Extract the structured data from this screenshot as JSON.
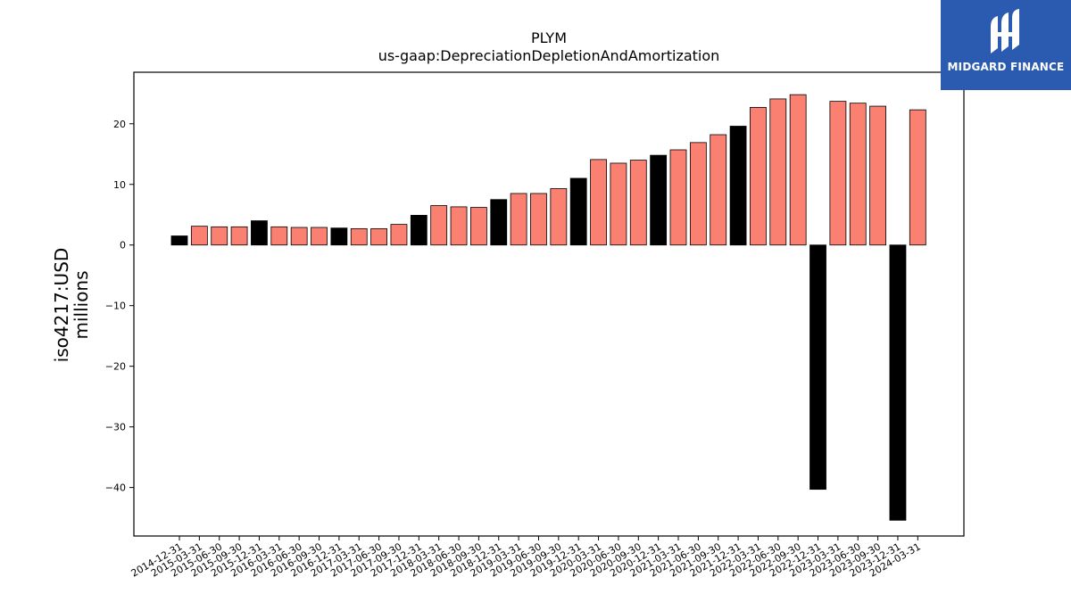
{
  "logo": {
    "text": "MIDGARD FINANCE",
    "icon": "midgard-logo-icon"
  },
  "chart_data": {
    "type": "bar",
    "title": "PLYM",
    "subtitle": "us-gaap:DepreciationDepletionAndAmortization",
    "ylabel_line1": "iso4217:USD",
    "ylabel_line2": "millions",
    "xlabel": "",
    "ylim": [
      -48,
      28.5
    ],
    "yticks": [
      20,
      10,
      0,
      -10,
      -20,
      -30,
      -40
    ],
    "ytick_labels": [
      "20",
      "10",
      "0",
      "−10",
      "−20",
      "−30",
      "−40"
    ],
    "grid": false,
    "colors": {
      "positive_quarter": "#fa8072",
      "annual_or_negative": "#000000",
      "edge": "#000000"
    },
    "categories": [
      "2014-12-31",
      "2015-03-31",
      "2015-06-30",
      "2015-09-30",
      "2015-12-31",
      "2016-03-31",
      "2016-06-30",
      "2016-09-30",
      "2016-12-31",
      "2017-03-31",
      "2017-06-30",
      "2017-09-30",
      "2017-12-31",
      "2018-03-31",
      "2018-06-30",
      "2018-09-30",
      "2018-12-31",
      "2019-03-31",
      "2019-06-30",
      "2019-09-30",
      "2019-12-31",
      "2020-03-31",
      "2020-06-30",
      "2020-09-30",
      "2020-12-31",
      "2021-03-31",
      "2021-06-30",
      "2021-09-30",
      "2021-12-31",
      "2022-03-31",
      "2022-06-30",
      "2022-09-30",
      "2022-12-31",
      "2023-03-31",
      "2023-06-30",
      "2023-09-30",
      "2023-12-31",
      "2024-03-31"
    ],
    "values": [
      1.5,
      3.1,
      3.0,
      3.0,
      4.0,
      3.0,
      2.9,
      2.9,
      2.8,
      2.7,
      2.7,
      3.4,
      4.9,
      6.5,
      6.3,
      6.2,
      7.5,
      8.5,
      8.5,
      9.3,
      11.0,
      14.1,
      13.5,
      14.0,
      14.8,
      15.7,
      16.9,
      18.2,
      19.6,
      22.7,
      24.1,
      24.8,
      -40.3,
      23.7,
      23.4,
      22.9,
      -45.4,
      22.3
    ],
    "bar_colors": [
      "#000000",
      "#fa8072",
      "#fa8072",
      "#fa8072",
      "#000000",
      "#fa8072",
      "#fa8072",
      "#fa8072",
      "#000000",
      "#fa8072",
      "#fa8072",
      "#fa8072",
      "#000000",
      "#fa8072",
      "#fa8072",
      "#fa8072",
      "#000000",
      "#fa8072",
      "#fa8072",
      "#fa8072",
      "#000000",
      "#fa8072",
      "#fa8072",
      "#fa8072",
      "#000000",
      "#fa8072",
      "#fa8072",
      "#fa8072",
      "#000000",
      "#fa8072",
      "#fa8072",
      "#fa8072",
      "#000000",
      "#fa8072",
      "#fa8072",
      "#fa8072",
      "#000000",
      "#fa8072"
    ]
  }
}
